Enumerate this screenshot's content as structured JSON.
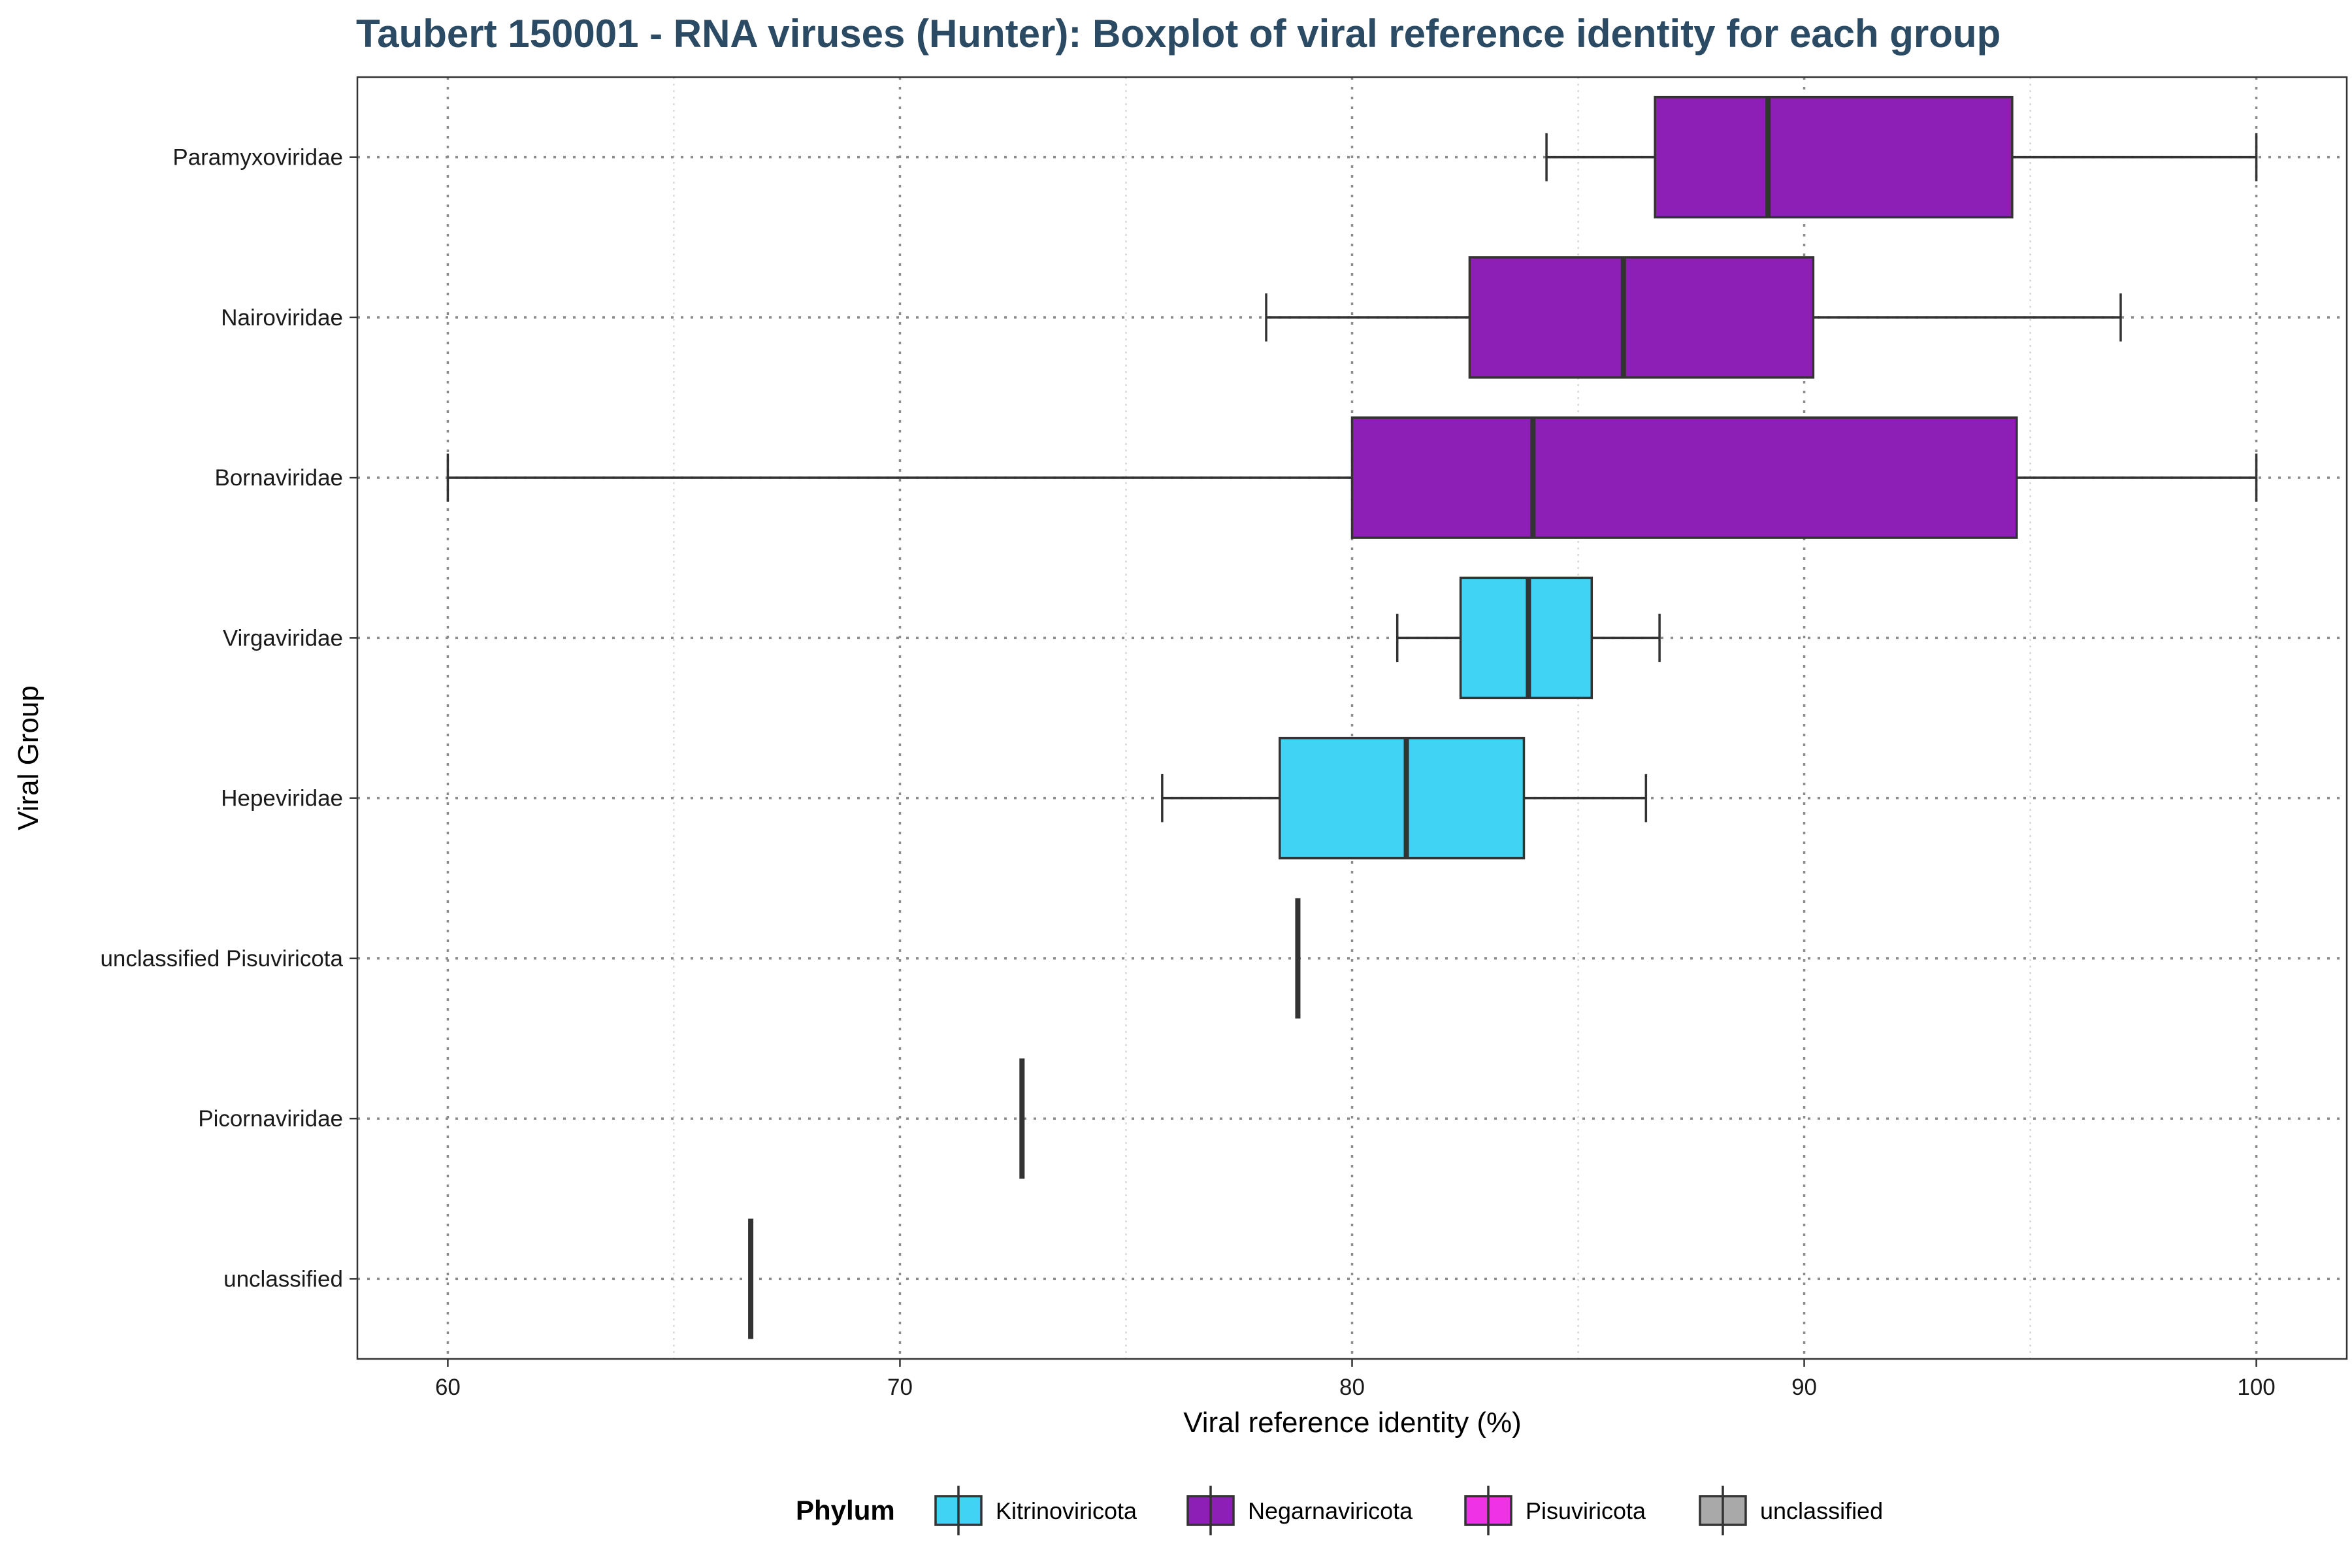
{
  "chart_data": {
    "type": "boxplot",
    "title": "Taubert 150001 - RNA viruses (Hunter): Boxplot of viral reference identity for each group",
    "xlabel": "Viral reference identity (%)",
    "ylabel": "Viral Group",
    "xlim": [
      58,
      102
    ],
    "xticks": [
      60,
      70,
      80,
      90,
      100
    ],
    "grid": "dotted major and minor vertical, dotted horizontal at each group",
    "legend": {
      "title": "Phylum",
      "position": "bottom",
      "entries": [
        {
          "name": "Kitrinoviricota",
          "color": "#41d3f4"
        },
        {
          "name": "Negarnaviricota",
          "color": "#8e1fb6"
        },
        {
          "name": "Pisuviricota",
          "color": "#f032e6"
        },
        {
          "name": "unclassified",
          "color": "#a9a9a9"
        }
      ]
    },
    "groups": [
      {
        "name": "Paramyxoviridae",
        "phylum": "Negarnaviricota",
        "min": 84.3,
        "q1": 86.7,
        "median": 89.2,
        "q3": 94.6,
        "max": 100
      },
      {
        "name": "Nairoviridae",
        "phylum": "Negarnaviricota",
        "min": 78.1,
        "q1": 82.6,
        "median": 86.0,
        "q3": 90.2,
        "max": 97.0
      },
      {
        "name": "Bornaviridae",
        "phylum": "Negarnaviricota",
        "min": 60.0,
        "q1": 80.0,
        "median": 84.0,
        "q3": 94.7,
        "max": 100
      },
      {
        "name": "Virgaviridae",
        "phylum": "Kitrinoviricota",
        "min": 81.0,
        "q1": 82.4,
        "median": 83.9,
        "q3": 85.3,
        "max": 86.8
      },
      {
        "name": "Hepeviridae",
        "phylum": "Kitrinoviricota",
        "min": 75.8,
        "q1": 78.4,
        "median": 81.2,
        "q3": 83.8,
        "max": 86.5
      },
      {
        "name": "unclassified Pisuviricota",
        "phylum": "Pisuviricota",
        "min": 78.8,
        "q1": 78.8,
        "median": 78.8,
        "q3": 78.8,
        "max": 78.8
      },
      {
        "name": "Picornaviridae",
        "phylum": "Pisuviricota",
        "min": 72.7,
        "q1": 72.7,
        "median": 72.7,
        "q3": 72.7,
        "max": 72.7
      },
      {
        "name": "unclassified",
        "phylum": "unclassified",
        "min": 66.7,
        "q1": 66.7,
        "median": 66.7,
        "q3": 66.7,
        "max": 66.7
      }
    ]
  }
}
